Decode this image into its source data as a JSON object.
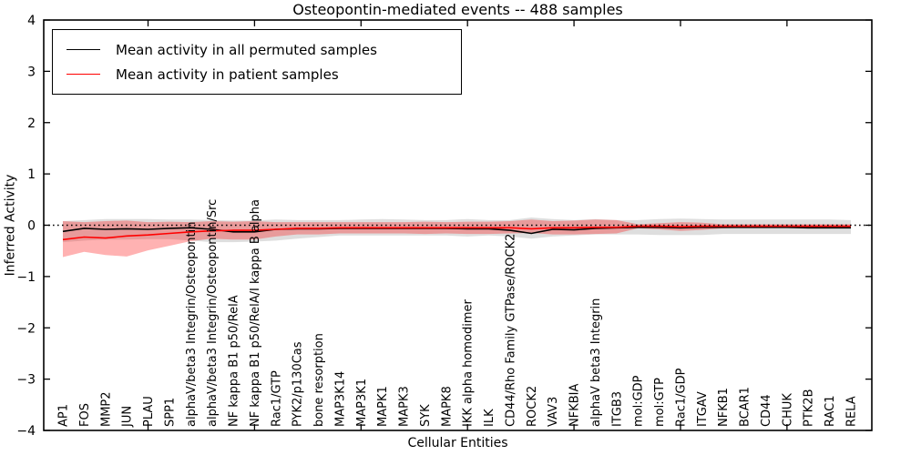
{
  "title": "Osteopontin-mediated events -- 488 samples",
  "axes": {
    "xlabel": "Cellular Entities",
    "ylabel": "Inferred Activity"
  },
  "legend": {
    "items": [
      {
        "label": "Mean activity in all permuted samples",
        "color": "#000000"
      },
      {
        "label": "Mean activity in patient samples",
        "color": "#ff0000"
      }
    ]
  },
  "chart_data": {
    "type": "line",
    "title": "Osteopontin-mediated events -- 488 samples",
    "xlabel": "Cellular Entities",
    "ylabel": "Inferred Activity",
    "ylim": [
      -4,
      4
    ],
    "yticks": [
      -4,
      -3,
      -2,
      -1,
      0,
      1,
      2,
      3,
      4
    ],
    "grid": false,
    "legend_position": "upper left",
    "zero_line": {
      "y": 0,
      "style": "dotted",
      "color": "#000000"
    },
    "categories": [
      "AP1",
      "FOS",
      "MMP2",
      "JUN",
      "PLAU",
      "SPP1",
      "alphaV/beta3 Integrin/Osteopontin",
      "alphaV/beta3 Integrin/Osteopontin/Src",
      "NF kappa B1 p50/RelA",
      "NF kappa B1 p50/RelA/I kappa B alpha",
      "Rac1/GTP",
      "PYK2/p130Cas",
      "bone resorption",
      "MAP3K14",
      "MAP3K1",
      "MAPK1",
      "MAPK3",
      "SYK",
      "MAPK8",
      "IKK alpha homodimer",
      "ILK",
      "CD44/Rho Family GTPase/ROCK2",
      "ROCK2",
      "VAV3",
      "NFKBIA",
      "alphaV beta3 Integrin",
      "ITGB3",
      "mol:GDP",
      "mol:GTP",
      "Rac1/GDP",
      "ITGAV",
      "NFKB1",
      "BCAR1",
      "CD44",
      "CHUK",
      "PTK2B",
      "RAC1",
      "RELA"
    ],
    "series": [
      {
        "name": "Mean activity in all permuted samples",
        "color": "#000000",
        "band_color": "#999999",
        "band_opacity": 0.32,
        "values": [
          -0.12,
          -0.06,
          -0.08,
          -0.07,
          -0.08,
          -0.06,
          -0.05,
          -0.08,
          -0.13,
          -0.13,
          -0.08,
          -0.07,
          -0.07,
          -0.06,
          -0.06,
          -0.06,
          -0.06,
          -0.06,
          -0.06,
          -0.07,
          -0.07,
          -0.1,
          -0.16,
          -0.08,
          -0.09,
          -0.06,
          -0.05,
          -0.04,
          -0.04,
          -0.05,
          -0.04,
          -0.04,
          -0.04,
          -0.04,
          -0.04,
          -0.05,
          -0.05,
          -0.05
        ],
        "band_upper": [
          0.08,
          0.1,
          0.12,
          0.12,
          0.12,
          0.11,
          0.11,
          0.1,
          0.09,
          0.09,
          0.11,
          0.1,
          0.1,
          0.1,
          0.11,
          0.12,
          0.11,
          0.1,
          0.1,
          0.12,
          0.1,
          0.1,
          0.15,
          0.12,
          0.1,
          0.12,
          0.1,
          0.1,
          0.12,
          0.13,
          0.12,
          0.11,
          0.11,
          0.11,
          0.11,
          0.11,
          0.11,
          0.1
        ],
        "band_lower": [
          -0.33,
          -0.3,
          -0.28,
          -0.28,
          -0.27,
          -0.27,
          -0.3,
          -0.33,
          -0.33,
          -0.32,
          -0.3,
          -0.26,
          -0.23,
          -0.2,
          -0.2,
          -0.2,
          -0.2,
          -0.2,
          -0.2,
          -0.22,
          -0.2,
          -0.22,
          -0.26,
          -0.22,
          -0.2,
          -0.18,
          -0.18,
          -0.18,
          -0.19,
          -0.19,
          -0.19,
          -0.17,
          -0.17,
          -0.17,
          -0.17,
          -0.17,
          -0.17,
          -0.17
        ]
      },
      {
        "name": "Mean activity in patient samples",
        "color": "#ff0000",
        "band_color": "#ff0000",
        "band_opacity": 0.3,
        "values": [
          -0.28,
          -0.23,
          -0.25,
          -0.21,
          -0.19,
          -0.16,
          -0.13,
          -0.11,
          -0.1,
          -0.1,
          -0.08,
          -0.06,
          -0.06,
          -0.05,
          -0.05,
          -0.05,
          -0.05,
          -0.05,
          -0.05,
          -0.05,
          -0.05,
          -0.05,
          -0.07,
          -0.05,
          -0.05,
          -0.04,
          -0.04,
          -0.02,
          -0.02,
          -0.03,
          -0.02,
          -0.02,
          -0.02,
          -0.02,
          -0.02,
          -0.02,
          -0.02,
          -0.02
        ],
        "band_upper": [
          0.08,
          0.06,
          0.08,
          0.09,
          0.06,
          0.07,
          0.06,
          0.08,
          0.07,
          0.08,
          0.06,
          0.06,
          0.06,
          0.06,
          0.06,
          0.06,
          0.06,
          0.07,
          0.06,
          0.07,
          0.07,
          0.08,
          0.11,
          0.08,
          0.09,
          0.11,
          0.1,
          0.02,
          0.04,
          0.06,
          0.05,
          0.02,
          0.02,
          0.02,
          0.02,
          0.02,
          0.02,
          0.02
        ],
        "band_lower": [
          -0.62,
          -0.52,
          -0.58,
          -0.61,
          -0.49,
          -0.4,
          -0.31,
          -0.26,
          -0.28,
          -0.28,
          -0.22,
          -0.18,
          -0.18,
          -0.16,
          -0.16,
          -0.16,
          -0.16,
          -0.17,
          -0.16,
          -0.17,
          -0.17,
          -0.16,
          -0.15,
          -0.18,
          -0.18,
          -0.17,
          -0.16,
          -0.06,
          -0.08,
          -0.11,
          -0.09,
          -0.06,
          -0.05,
          -0.05,
          -0.05,
          -0.06,
          -0.06,
          -0.06
        ]
      }
    ]
  }
}
